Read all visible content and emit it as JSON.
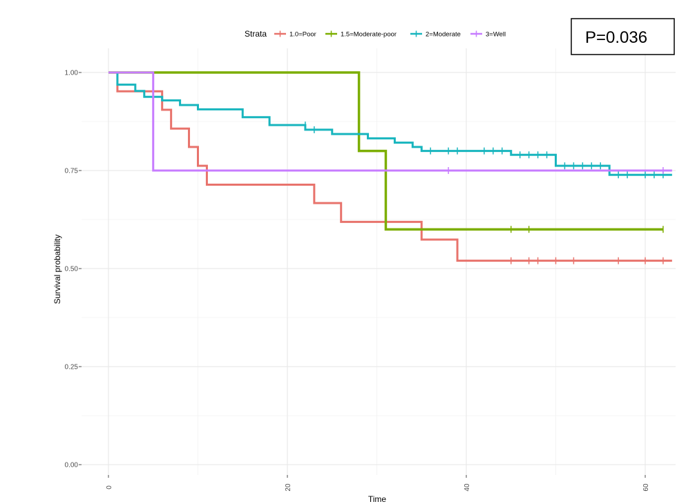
{
  "chart_data": {
    "type": "line",
    "xlabel": "Time",
    "ylabel": "Survival probability",
    "xlim": [
      0,
      63
    ],
    "ylim": [
      0,
      1
    ],
    "x_ticks": [
      0,
      20,
      40,
      60
    ],
    "y_ticks": [
      0,
      0.25,
      0.5,
      0.75,
      1
    ],
    "y_tick_labels": [
      "0.00",
      "0.25",
      "0.50",
      "0.75",
      "1.00"
    ],
    "x_minor_ticks": [
      10,
      30,
      50
    ],
    "y_minor_ticks": [
      0.125,
      0.375,
      0.625,
      0.875
    ],
    "grid": true,
    "legend": {
      "title": "Strata",
      "position": "top"
    },
    "annotation": {
      "text": "P=0.036",
      "position": "top-right"
    },
    "series": [
      {
        "name": "1.0=Poor",
        "color": "#E8736C",
        "steps": [
          [
            0,
            1
          ],
          [
            1,
            0.952
          ],
          [
            6,
            0.905
          ],
          [
            7,
            0.857
          ],
          [
            9,
            0.81
          ],
          [
            10,
            0.762
          ],
          [
            11,
            0.714
          ],
          [
            23,
            0.667
          ],
          [
            26,
            0.619
          ],
          [
            35,
            0.574
          ],
          [
            39,
            0.52
          ],
          [
            63,
            0.52
          ]
        ],
        "censors": [
          [
            45,
            0.52
          ],
          [
            47,
            0.52
          ],
          [
            48,
            0.52
          ],
          [
            50,
            0.52
          ],
          [
            52,
            0.52
          ],
          [
            57,
            0.52
          ],
          [
            60,
            0.52
          ],
          [
            62,
            0.52
          ]
        ]
      },
      {
        "name": "1.5=Moderate-poor",
        "color": "#7CAE00",
        "steps": [
          [
            0,
            1
          ],
          [
            28,
            0.8
          ],
          [
            31,
            0.6
          ],
          [
            62,
            0.6
          ]
        ],
        "censors": [
          [
            45,
            0.6
          ],
          [
            47,
            0.6
          ],
          [
            62,
            0.6
          ]
        ]
      },
      {
        "name": "2=Moderate",
        "color": "#18B5BE",
        "steps": [
          [
            0,
            1
          ],
          [
            1,
            0.969
          ],
          [
            3,
            0.953
          ],
          [
            4,
            0.938
          ],
          [
            6,
            0.929
          ],
          [
            8,
            0.917
          ],
          [
            10,
            0.906
          ],
          [
            15,
            0.886
          ],
          [
            18,
            0.866
          ],
          [
            22,
            0.854
          ],
          [
            25,
            0.843
          ],
          [
            29,
            0.832
          ],
          [
            32,
            0.821
          ],
          [
            34,
            0.81
          ],
          [
            35,
            0.8
          ],
          [
            45,
            0.79
          ],
          [
            50,
            0.762
          ],
          [
            56,
            0.739
          ],
          [
            63,
            0.739
          ]
        ],
        "censors": [
          [
            22,
            0.866
          ],
          [
            23,
            0.854
          ],
          [
            36,
            0.8
          ],
          [
            38,
            0.8
          ],
          [
            39,
            0.8
          ],
          [
            42,
            0.8
          ],
          [
            43,
            0.8
          ],
          [
            44,
            0.8
          ],
          [
            46,
            0.79
          ],
          [
            47,
            0.79
          ],
          [
            48,
            0.79
          ],
          [
            49,
            0.79
          ],
          [
            51,
            0.762
          ],
          [
            52,
            0.762
          ],
          [
            53,
            0.762
          ],
          [
            54,
            0.762
          ],
          [
            55,
            0.762
          ],
          [
            57,
            0.739
          ],
          [
            58,
            0.739
          ],
          [
            60,
            0.739
          ],
          [
            61,
            0.739
          ],
          [
            62,
            0.739
          ]
        ]
      },
      {
        "name": "3=Well",
        "color": "#C77CFF",
        "steps": [
          [
            0,
            1
          ],
          [
            5,
            0.75
          ],
          [
            63,
            0.75
          ]
        ],
        "censors": [
          [
            38,
            0.75
          ],
          [
            62,
            0.75
          ]
        ]
      }
    ]
  }
}
